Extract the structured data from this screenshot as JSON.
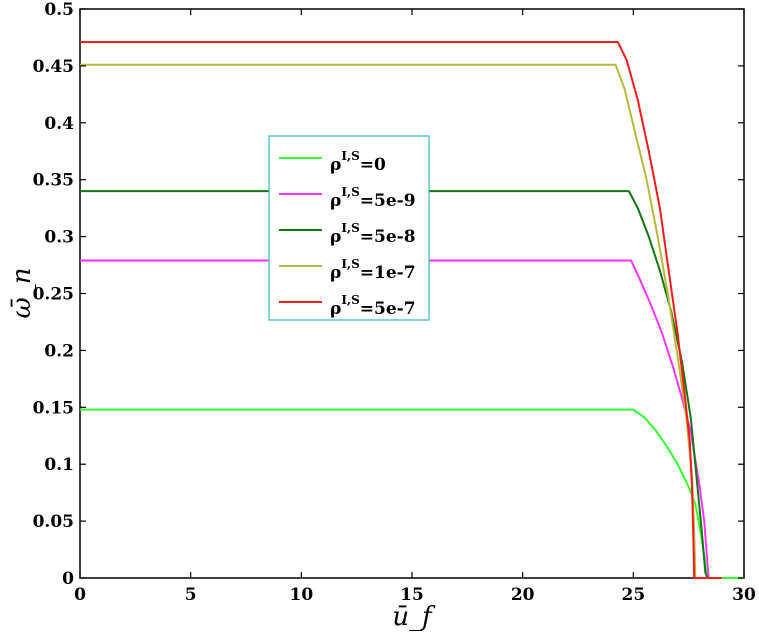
{
  "chart_data": {
    "type": "line",
    "xlabel": "ū_f",
    "ylabel": "ω̄_n",
    "xlim": [
      0,
      30
    ],
    "ylim": [
      0,
      0.5
    ],
    "xticks": [
      0,
      5,
      10,
      15,
      20,
      25,
      30
    ],
    "yticks": [
      0,
      0.05,
      0.1,
      0.15,
      0.2,
      0.25,
      0.3,
      0.35,
      0.4,
      0.45,
      0.5
    ],
    "xtick_labels": [
      "0",
      "5",
      "10",
      "15",
      "20",
      "25",
      "30"
    ],
    "ytick_labels": [
      "0",
      "0.05",
      "0.1",
      "0.15",
      "0.2",
      "0.25",
      "0.3",
      "0.35",
      "0.4",
      "0.45",
      "0.5"
    ],
    "grid": false,
    "legend_position": "center-left",
    "series": [
      {
        "name": "ρ^{I,S}=0",
        "legend_main": "ρ",
        "legend_sup": "I,S",
        "legend_tail": "=0",
        "color": "#33ff33",
        "x": [
          0,
          25.0,
          25.5,
          26.0,
          26.5,
          27.0,
          27.5,
          27.8,
          28.0,
          28.2,
          28.35,
          28.4,
          30
        ],
        "y": [
          0.148,
          0.148,
          0.141,
          0.13,
          0.116,
          0.1,
          0.08,
          0.065,
          0.045,
          0.02,
          0.0,
          0.0,
          0.0
        ]
      },
      {
        "name": "ρ^{I,S}=5e-9",
        "legend_main": "ρ",
        "legend_sup": "I,S",
        "legend_tail": "=5e-9",
        "color": "#ff33ff",
        "x": [
          0,
          24.9,
          25.3,
          25.8,
          26.3,
          26.8,
          27.2,
          27.6,
          28.0,
          28.2,
          28.4,
          28.6
        ],
        "y": [
          0.279,
          0.279,
          0.262,
          0.24,
          0.215,
          0.185,
          0.158,
          0.128,
          0.08,
          0.05,
          0.0,
          0.0
        ]
      },
      {
        "name": "ρ^{I,S}=5e-8",
        "legend_main": "ρ",
        "legend_sup": "I,S",
        "legend_tail": "=5e-8",
        "color": "#117711",
        "x": [
          0,
          24.8,
          25.2,
          25.7,
          26.2,
          26.7,
          27.2,
          27.6,
          27.9,
          28.1,
          28.25,
          28.35
        ],
        "y": [
          0.34,
          0.34,
          0.325,
          0.3,
          0.27,
          0.235,
          0.19,
          0.14,
          0.08,
          0.04,
          0.005,
          0.0
        ]
      },
      {
        "name": "ρ^{I,S}=1e-7",
        "legend_main": "ρ",
        "legend_sup": "I,S",
        "legend_tail": "=1e-7",
        "color": "#b8b83a",
        "x": [
          0,
          24.2,
          24.6,
          25.1,
          25.6,
          26.1,
          26.6,
          27.0,
          27.4,
          27.65,
          27.75,
          27.8,
          28.0
        ],
        "y": [
          0.451,
          0.451,
          0.43,
          0.39,
          0.35,
          0.3,
          0.245,
          0.195,
          0.14,
          0.09,
          0.04,
          0.0,
          0.0
        ]
      },
      {
        "name": "ρ^{I,S}=5e-7",
        "legend_main": "ρ",
        "legend_sup": "I,S",
        "legend_tail": "=5e-7",
        "color": "#ff1a1a",
        "x": [
          0,
          24.3,
          24.7,
          25.2,
          25.7,
          26.2,
          26.6,
          27.0,
          27.3,
          27.55,
          27.65,
          27.72,
          27.75,
          28.0,
          29.0
        ],
        "y": [
          0.471,
          0.471,
          0.455,
          0.42,
          0.375,
          0.325,
          0.27,
          0.215,
          0.165,
          0.12,
          0.08,
          0.03,
          0.0,
          0.0,
          0.0
        ]
      }
    ]
  }
}
